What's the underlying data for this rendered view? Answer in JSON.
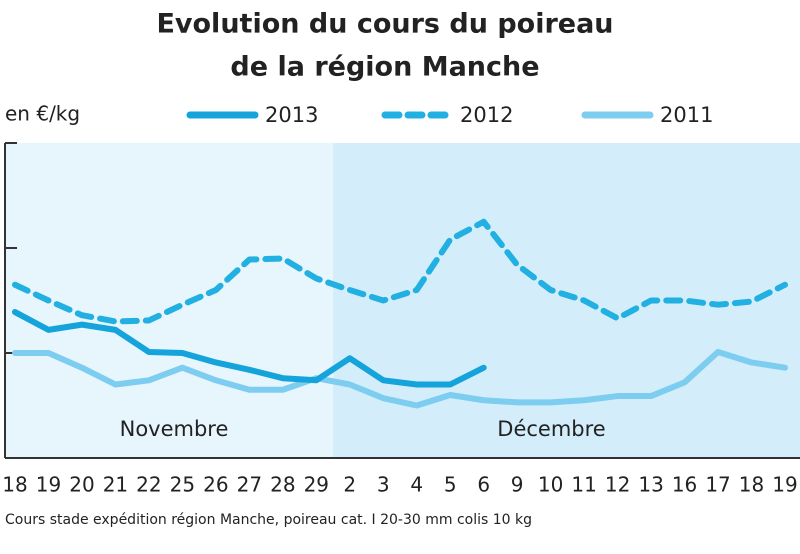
{
  "chart_data": {
    "type": "line",
    "title": [
      "Evolution du cours du poireau",
      "de la région Manche"
    ],
    "ylabel": "en €/kg",
    "categories": [
      "18",
      "19",
      "20",
      "21",
      "22",
      "25",
      "26",
      "27",
      "28",
      "29",
      "2",
      "3",
      "4",
      "5",
      "6",
      "9",
      "10",
      "11",
      "12",
      "13",
      "16",
      "17",
      "18",
      "19"
    ],
    "annotations": [
      "Novembre",
      "Décembre"
    ],
    "series": [
      {
        "name": "2013",
        "color": "#14a3da",
        "style": "solid",
        "values": [
          1.39,
          1.22,
          1.27,
          1.22,
          1.01,
          1.0,
          0.91,
          0.84,
          0.76,
          0.74,
          0.95,
          0.74,
          0.7,
          0.7,
          0.86,
          null,
          null,
          null,
          null,
          null,
          null,
          null,
          null,
          null
        ]
      },
      {
        "name": "2012",
        "color": "#22b0e2",
        "style": "dashed",
        "values": [
          1.65,
          1.5,
          1.36,
          1.3,
          1.31,
          1.46,
          1.6,
          1.89,
          1.9,
          1.71,
          1.6,
          1.5,
          1.6,
          2.08,
          2.25,
          1.84,
          1.6,
          1.5,
          1.33,
          1.5,
          1.5,
          1.46,
          1.49,
          1.65
        ]
      },
      {
        "name": "2011",
        "color": "#7ccdef",
        "style": "solid",
        "values": [
          1.0,
          1.0,
          0.86,
          0.7,
          0.74,
          0.86,
          0.74,
          0.65,
          0.65,
          0.76,
          0.7,
          0.57,
          0.5,
          0.6,
          0.55,
          0.53,
          0.53,
          0.55,
          0.59,
          0.59,
          0.72,
          1.01,
          0.91,
          0.86
        ]
      }
    ],
    "ylim": [
      0,
      3
    ],
    "yticks": [
      0,
      1,
      2,
      3
    ],
    "source": "Cours stade expédition région Manche, poireau cat. I 20-30 mm colis 10 kg"
  }
}
